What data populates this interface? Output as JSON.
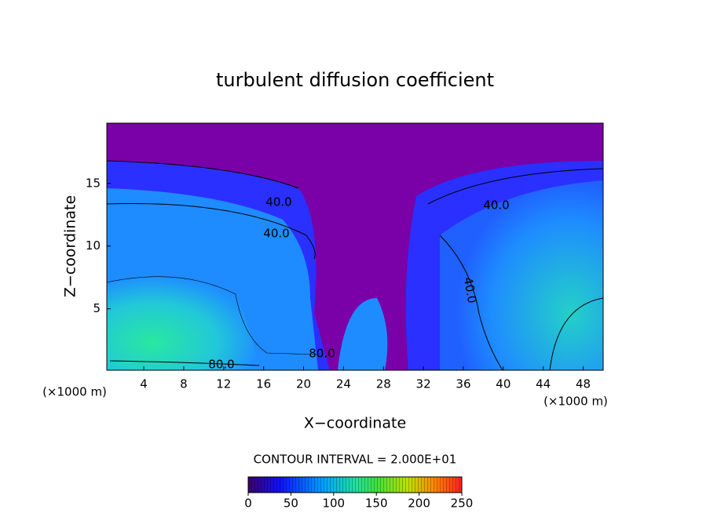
{
  "chart_data": {
    "type": "contour",
    "title": "turbulent diffusion coefficient",
    "x_label": "X−coordinate",
    "y_label": "Z−coordinate",
    "x_unit_left": "(×1000 m)",
    "x_unit_right": "(×1000 m)",
    "xlim": [
      0.3,
      50
    ],
    "xticks": [
      4,
      8,
      12,
      16,
      20,
      24,
      28,
      32,
      36,
      40,
      44,
      48
    ],
    "ylim": [
      0.1,
      19.8
    ],
    "yticks": [
      5,
      10,
      15
    ],
    "contour_interval_text": "CONTOUR INTERVAL = 2.000E+01",
    "contour_labels": [
      {
        "value": 40,
        "label": "40.0"
      },
      {
        "value": 40,
        "label": "40.0"
      },
      {
        "value": 40,
        "label": "40.0"
      },
      {
        "value": 40,
        "label": "40.0"
      },
      {
        "value": 80,
        "label": "80.0"
      },
      {
        "value": 80,
        "label": "80.0"
      }
    ],
    "colorbar": {
      "clim": [
        0,
        250
      ],
      "ticks": [
        0,
        50,
        100,
        150,
        200,
        250
      ]
    }
  }
}
